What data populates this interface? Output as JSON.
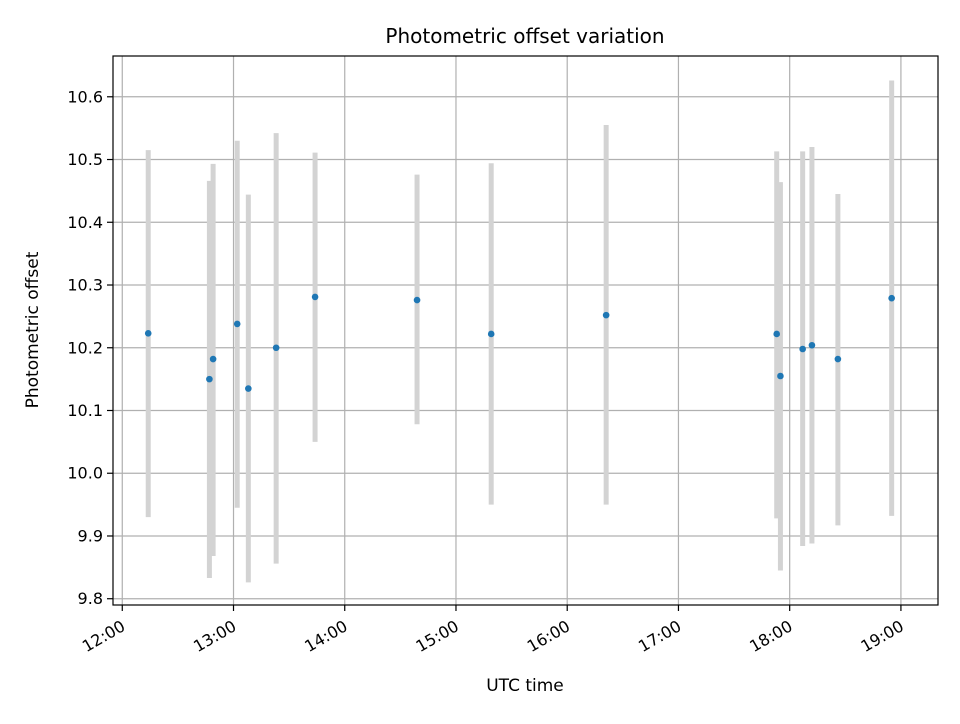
{
  "chart_data": {
    "type": "scatter",
    "title": "Photometric offset variation",
    "xlabel": "UTC time",
    "ylabel": "Photometric offset",
    "x_ticks": [
      "12:00",
      "13:00",
      "14:00",
      "15:00",
      "16:00",
      "17:00",
      "18:00",
      "19:00"
    ],
    "y_ticks": [
      "9.8",
      "9.9",
      "10.0",
      "10.1",
      "10.2",
      "10.3",
      "10.4",
      "10.5",
      "10.6"
    ],
    "xlim": [
      "11:55",
      "19:20"
    ],
    "ylim": [
      9.79,
      10.665
    ],
    "grid": true,
    "points": [
      {
        "x": "12:14",
        "y": 10.223,
        "ylow": 9.93,
        "yhigh": 10.515
      },
      {
        "x": "12:47",
        "y": 10.15,
        "ylow": 9.833,
        "yhigh": 10.466
      },
      {
        "x": "12:49",
        "y": 10.182,
        "ylow": 9.868,
        "yhigh": 10.493
      },
      {
        "x": "13:02",
        "y": 10.238,
        "ylow": 9.945,
        "yhigh": 10.53
      },
      {
        "x": "13:08",
        "y": 10.135,
        "ylow": 9.826,
        "yhigh": 10.444
      },
      {
        "x": "13:23",
        "y": 10.2,
        "ylow": 9.856,
        "yhigh": 10.542
      },
      {
        "x": "13:44",
        "y": 10.281,
        "ylow": 10.05,
        "yhigh": 10.511
      },
      {
        "x": "14:39",
        "y": 10.276,
        "ylow": 10.078,
        "yhigh": 10.476
      },
      {
        "x": "15:19",
        "y": 10.222,
        "ylow": 9.95,
        "yhigh": 10.494
      },
      {
        "x": "16:21",
        "y": 10.252,
        "ylow": 9.95,
        "yhigh": 10.555
      },
      {
        "x": "17:53",
        "y": 10.222,
        "ylow": 9.928,
        "yhigh": 10.513
      },
      {
        "x": "17:55",
        "y": 10.155,
        "ylow": 9.845,
        "yhigh": 10.464
      },
      {
        "x": "18:07",
        "y": 10.198,
        "ylow": 9.884,
        "yhigh": 10.513
      },
      {
        "x": "18:12",
        "y": 10.204,
        "ylow": 9.888,
        "yhigh": 10.52
      },
      {
        "x": "18:26",
        "y": 10.182,
        "ylow": 9.917,
        "yhigh": 10.445
      },
      {
        "x": "18:55",
        "y": 10.279,
        "ylow": 9.932,
        "yhigh": 10.626
      }
    ],
    "colors": {
      "points": "#1f77b4",
      "errorbars": "#d3d3d3",
      "grid": "#b0b0b0"
    }
  }
}
